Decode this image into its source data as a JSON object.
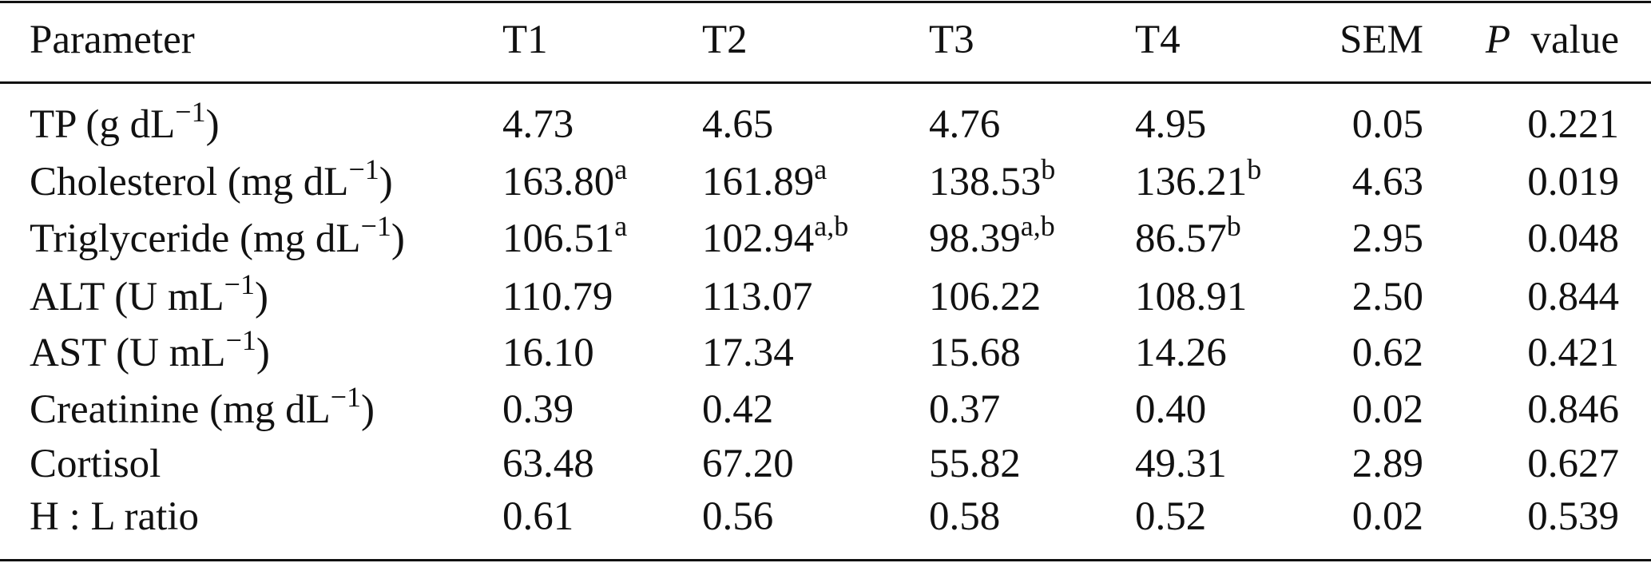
{
  "table": {
    "header": [
      "Parameter",
      "T1",
      "T2",
      "T3",
      "T4",
      "SEM",
      {
        "italic": "P",
        "text": "value"
      }
    ],
    "rows": [
      {
        "label": {
          "text": "TP (g dL",
          "sup": "−1",
          "tail": ")"
        },
        "cells": [
          "4.73",
          "4.65",
          "4.76",
          "4.95",
          "0.05",
          "0.221"
        ]
      },
      {
        "label": {
          "text": "Cholesterol (mg dL",
          "sup": "−1",
          "tail": ")"
        },
        "cells": [
          {
            "text": "163.80",
            "sup": "a"
          },
          {
            "text": "161.89",
            "sup": "a"
          },
          {
            "text": "138.53",
            "sup": "b"
          },
          {
            "text": "136.21",
            "sup": "b"
          },
          "4.63",
          "0.019"
        ]
      },
      {
        "label": {
          "text": "Triglyceride (mg dL",
          "sup": "−1",
          "tail": ")"
        },
        "cells": [
          {
            "text": "106.51",
            "sup": "a"
          },
          {
            "text": "102.94",
            "sup": "a,b"
          },
          {
            "text": "98.39",
            "sup": "a,b"
          },
          {
            "text": "86.57",
            "sup": "b"
          },
          "2.95",
          "0.048"
        ]
      },
      {
        "label": {
          "text": "ALT (U mL",
          "sup": "−1",
          "tail": ")"
        },
        "cells": [
          "110.79",
          "113.07",
          "106.22",
          "108.91",
          "2.50",
          "0.844"
        ]
      },
      {
        "label": {
          "text": "AST (U mL",
          "sup": "−1",
          "tail": ")"
        },
        "cells": [
          "16.10",
          "17.34",
          "15.68",
          "14.26",
          "0.62",
          "0.421"
        ]
      },
      {
        "label": {
          "text": "Creatinine (mg dL",
          "sup": "−1",
          "tail": ")"
        },
        "cells": [
          "0.39",
          "0.42",
          "0.37",
          "0.40",
          "0.02",
          "0.846"
        ]
      },
      {
        "label": {
          "text": "Cortisol"
        },
        "cells": [
          "63.48",
          "67.20",
          "55.82",
          "49.31",
          "2.89",
          "0.627"
        ]
      },
      {
        "label": {
          "text": "H : L ratio"
        },
        "cells": [
          "0.61",
          "0.56",
          "0.58",
          "0.52",
          "0.02",
          "0.539"
        ]
      }
    ]
  }
}
